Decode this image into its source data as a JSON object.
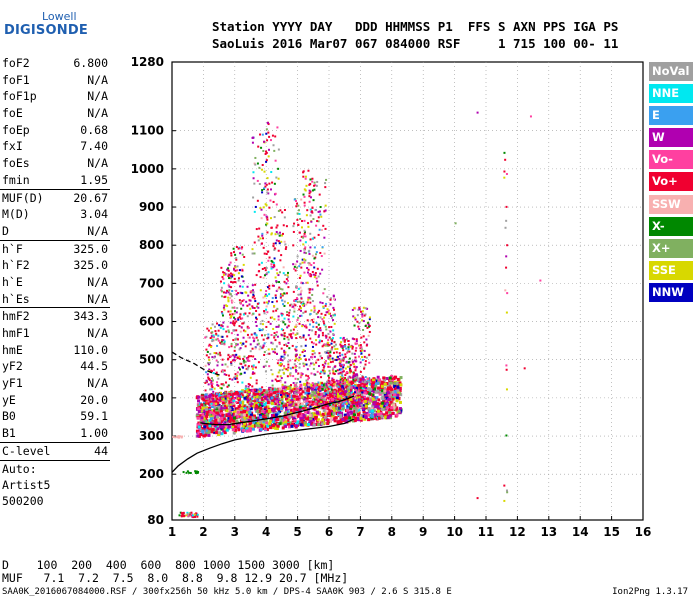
{
  "logo": {
    "line1": "Lowell",
    "line2": "DIGISONDE"
  },
  "header": {
    "line1": "Station YYYY DAY   DDD HHMMSS P1  FFS S AXN PPS IGA PS",
    "line2": "SaoLuis 2016 Mar07 067 084000 RSF     1 715 100 00- 11"
  },
  "params": [
    {
      "label": "foF2",
      "value": "6.800"
    },
    {
      "label": "foF1",
      "value": "N/A"
    },
    {
      "label": "foF1p",
      "value": "N/A"
    },
    {
      "label": "foE",
      "value": "N/A"
    },
    {
      "label": "foEp",
      "value": "0.68"
    },
    {
      "label": "fxI",
      "value": "7.40"
    },
    {
      "label": "foEs",
      "value": "N/A"
    },
    {
      "label": "fmin",
      "value": "1.95"
    },
    {
      "sep": true
    },
    {
      "label": "MUF(D)",
      "value": "20.67"
    },
    {
      "label": "M(D)",
      "value": "3.04"
    },
    {
      "label": "D",
      "value": "N/A"
    },
    {
      "sep": true
    },
    {
      "label": "h`F",
      "value": "325.0"
    },
    {
      "label": "h`F2",
      "value": "325.0"
    },
    {
      "label": "h`E",
      "value": "N/A"
    },
    {
      "label": "h`Es",
      "value": "N/A"
    },
    {
      "sep": true
    },
    {
      "label": "hmF2",
      "value": "343.3"
    },
    {
      "label": "hmF1",
      "value": "N/A"
    },
    {
      "label": "hmE",
      "value": "110.0"
    },
    {
      "label": "yF2",
      "value": "44.5"
    },
    {
      "label": "yF1",
      "value": "N/A"
    },
    {
      "label": "yE",
      "value": "20.0"
    },
    {
      "label": "B0",
      "value": "59.1"
    },
    {
      "label": "B1",
      "value": "1.00"
    },
    {
      "sep": true
    },
    {
      "label": "C-level",
      "value": "44"
    },
    {
      "sep": true
    }
  ],
  "auto": {
    "line1": "Auto:",
    "line2": "Artist5",
    "line3": "500200"
  },
  "legend": [
    {
      "label": "NoVal",
      "color": "#a0a0a0"
    },
    {
      "label": "NNE",
      "color": "#00e8f0"
    },
    {
      "label": "E",
      "color": "#3aa0f0"
    },
    {
      "label": "W",
      "color": "#b000b0"
    },
    {
      "label": "Vo-",
      "color": "#ff40a0"
    },
    {
      "label": "Vo+",
      "color": "#f00030"
    },
    {
      "label": "SSW",
      "color": "#f8b0b0"
    },
    {
      "label": "X-",
      "color": "#008800"
    },
    {
      "label": "X+",
      "color": "#80b060"
    },
    {
      "label": "SSE",
      "color": "#d8d800"
    },
    {
      "label": "NNW",
      "color": "#0000c0"
    }
  ],
  "dmuf": {
    "d_line": "D    100  200  400  600  800 1000 1500 3000 [km]",
    "muf_line": "MUF   7.1  7.2  7.5  8.0  8.8  9.8 12.9 20.7 [MHz]"
  },
  "footer": "SAA0K_2016067084000.RSF / 300fx256h 50 kHz 5.0 km / DPS-4 SAA0K 903 / 2.6 S 315.8 E",
  "version": "Ion2Png 1.3.17",
  "chart_data": {
    "type": "scatter",
    "title": "",
    "xlabel": "",
    "ylabel": "",
    "xlim": [
      1,
      16
    ],
    "ylim": [
      80,
      1280
    ],
    "x_ticks": [
      1,
      2,
      3,
      4,
      5,
      6,
      7,
      8,
      9,
      10,
      11,
      12,
      13,
      14,
      15,
      16
    ],
    "y_ticks": [
      80,
      200,
      300,
      400,
      500,
      600,
      700,
      800,
      900,
      1000,
      1100,
      1280
    ],
    "grid": true,
    "legend_position": "right",
    "virtual_height_trace": {
      "x": [
        1.9,
        2.0,
        2.4,
        2.8,
        3.2,
        3.6,
        4.0,
        4.5,
        5.0,
        5.5,
        6.0,
        6.3,
        6.6,
        6.8
      ],
      "y": [
        335,
        333,
        330,
        330,
        335,
        340,
        345,
        352,
        362,
        373,
        385,
        390,
        398,
        405
      ]
    },
    "profile_trace": {
      "x": [
        1.0,
        1.2,
        1.5,
        1.8,
        2.2,
        2.6,
        3.0,
        3.5,
        4.0,
        4.5,
        5.0,
        5.5,
        6.0,
        6.5,
        6.8
      ],
      "y": [
        205,
        222,
        240,
        255,
        268,
        280,
        290,
        298,
        305,
        310,
        315,
        320,
        325,
        333,
        345
      ]
    },
    "dashed_trace": {
      "x": [
        1.0,
        1.3,
        1.7,
        2.0,
        2.3,
        2.6
      ],
      "y": [
        520,
        505,
        490,
        475,
        465,
        458
      ]
    }
  }
}
